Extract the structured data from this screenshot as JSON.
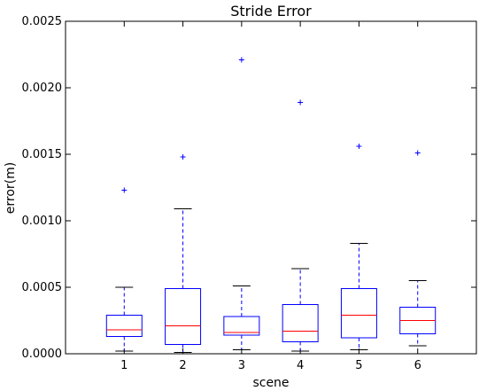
{
  "chart_data": {
    "type": "box",
    "title": "Stride Error",
    "xlabel": "scene",
    "ylabel": "error(m)",
    "ylim": [
      0,
      0.0025
    ],
    "yticks": [
      "0.0000",
      "0.0005",
      "0.0010",
      "0.0015",
      "0.0020",
      "0.0025"
    ],
    "ytick_values": [
      0,
      0.0005,
      0.001,
      0.0015,
      0.002,
      0.0025
    ],
    "categories": [
      "1",
      "2",
      "3",
      "4",
      "5",
      "6"
    ],
    "grid": false,
    "colors": {
      "box": "#0000ff",
      "median": "#ff0000",
      "whisker": "#0000ff",
      "cap": "#000000",
      "flier": "#0000ff",
      "axes": "#000000"
    },
    "boxes": [
      {
        "category": "1",
        "whisker_low": 2e-05,
        "q1": 0.00013,
        "median": 0.00018,
        "q3": 0.00029,
        "whisker_high": 0.0005,
        "fliers": [
          0.00123
        ]
      },
      {
        "category": "2",
        "whisker_low": 1e-05,
        "q1": 7e-05,
        "median": 0.00021,
        "q3": 0.00049,
        "whisker_high": 0.00109,
        "fliers": [
          0.00148
        ]
      },
      {
        "category": "3",
        "whisker_low": 3e-05,
        "q1": 0.00014,
        "median": 0.00016,
        "q3": 0.00028,
        "whisker_high": 0.00051,
        "fliers": [
          0.00221
        ]
      },
      {
        "category": "4",
        "whisker_low": 2e-05,
        "q1": 9e-05,
        "median": 0.00017,
        "q3": 0.00037,
        "whisker_high": 0.00064,
        "fliers": [
          0.00189
        ]
      },
      {
        "category": "5",
        "whisker_low": 3e-05,
        "q1": 0.00012,
        "median": 0.00029,
        "q3": 0.00049,
        "whisker_high": 0.00083,
        "fliers": [
          0.00156
        ]
      },
      {
        "category": "6",
        "whisker_low": 6e-05,
        "q1": 0.00015,
        "median": 0.00025,
        "q3": 0.00035,
        "whisker_high": 0.00055,
        "fliers": [
          0.00151
        ]
      }
    ]
  }
}
